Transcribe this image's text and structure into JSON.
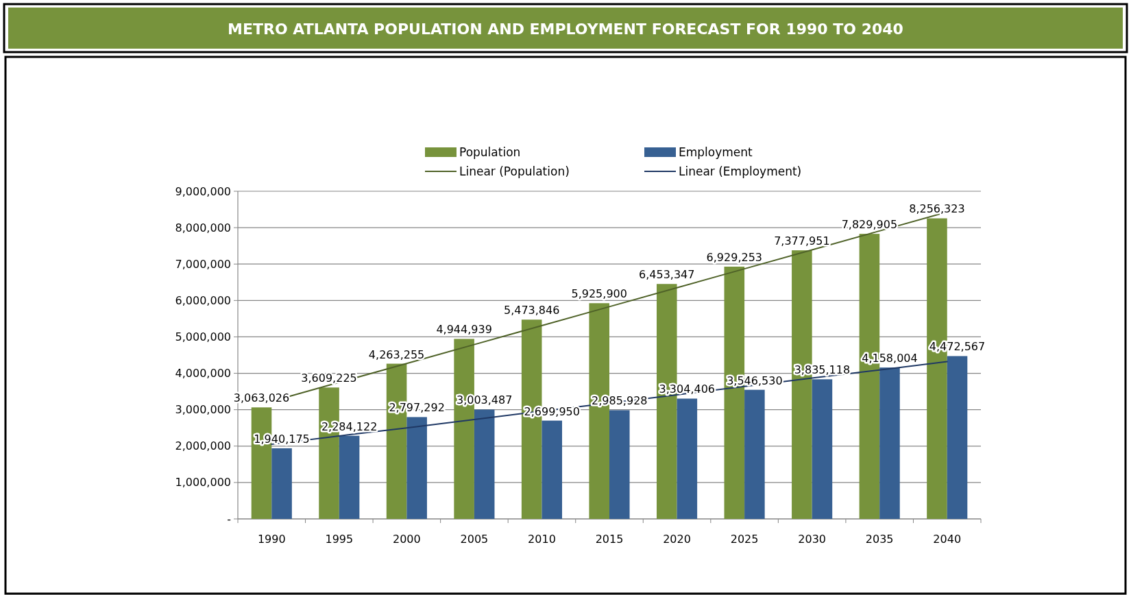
{
  "chart_data": {
    "type": "bar",
    "title": "METRO ATLANTA POPULATION AND EMPLOYMENT FORECAST FOR 1990 TO 2040",
    "categories": [
      "1990",
      "1995",
      "2000",
      "2005",
      "2010",
      "2015",
      "2020",
      "2025",
      "2030",
      "2035",
      "2040"
    ],
    "series": [
      {
        "name": "Population",
        "color": "#77933c",
        "values": [
          3063026,
          3609225,
          4263255,
          4944939,
          5473846,
          5925900,
          6453347,
          6929253,
          7377951,
          7829905,
          8256323
        ],
        "value_labels": [
          "3,063,026",
          "3,609,225",
          "4,263,255",
          "4,944,939",
          "5,473,846",
          "5,925,900",
          "6,453,347",
          "6,929,253",
          "7,377,951",
          "7,829,905",
          "8,256,323"
        ]
      },
      {
        "name": "Employment",
        "color": "#376092",
        "values": [
          1940175,
          2284122,
          2797292,
          3003487,
          2699950,
          2985928,
          3304406,
          3546530,
          3835118,
          4158004,
          4472567
        ],
        "value_labels": [
          "1,940,175",
          "2,284,122",
          "2,797,292",
          "3,003,487",
          "2,699,950",
          "2,985,928",
          "3,304,406",
          "3,546,530",
          "3,835,118",
          "4,158,004",
          "4,472,567"
        ]
      },
      {
        "name": "Linear (Population)",
        "type": "line",
        "color": "#4f6228",
        "values": [
          3230000,
          3750000,
          4270000,
          4790000,
          5310000,
          5830000,
          6350000,
          6870000,
          7390000,
          7910000,
          8430000
        ]
      },
      {
        "name": "Linear (Employment)",
        "type": "line",
        "color": "#1f3864",
        "values": [
          2050000,
          2280000,
          2500000,
          2730000,
          2960000,
          3180000,
          3410000,
          3640000,
          3870000,
          4090000,
          4320000
        ]
      }
    ],
    "ylim": [
      0,
      9000000
    ],
    "yticks": [
      {
        "value": 0,
        "label": "-"
      },
      {
        "value": 1000000,
        "label": "1,000,000"
      },
      {
        "value": 2000000,
        "label": "2,000,000"
      },
      {
        "value": 3000000,
        "label": "3,000,000"
      },
      {
        "value": 4000000,
        "label": "4,000,000"
      },
      {
        "value": 5000000,
        "label": "5,000,000"
      },
      {
        "value": 6000000,
        "label": "6,000,000"
      },
      {
        "value": 7000000,
        "label": "7,000,000"
      },
      {
        "value": 8000000,
        "label": "8,000,000"
      },
      {
        "value": 9000000,
        "label": "9,000,000"
      }
    ],
    "grid": "y",
    "legend": "top",
    "marker": "none",
    "line_style": "solid"
  }
}
